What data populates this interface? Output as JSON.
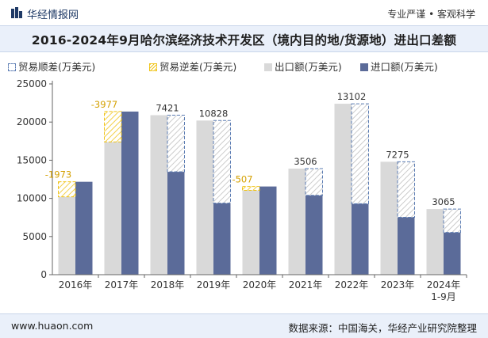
{
  "header": {
    "brand": "华经情报网",
    "tagline": "专业严谨 • 客观科学",
    "logo_icon": "bar-logo-icon"
  },
  "title": "2016-2024年9月哈尔滨经济技术开发区（境内目的地/货源地）进出口差额",
  "footer": {
    "url": "www.huaon.com",
    "source": "数据来源：中国海关，华经产业研究院整理"
  },
  "colors": {
    "export": "#d9d9d9",
    "import": "#5b6b99",
    "surplus_border": "#5b7cb3",
    "deficit": "#f0c419",
    "hatch": "#bfbfbf"
  },
  "chart_data": {
    "type": "bar",
    "categories": [
      "2016年",
      "2017年",
      "2018年",
      "2019年",
      "2020年",
      "2021年",
      "2022年",
      "2023年",
      "2024年\n1-9月"
    ],
    "series": [
      {
        "name": "出口额(万美元)",
        "values": [
          10200,
          17400,
          20900,
          20200,
          11050,
          13900,
          22400,
          14800,
          8600
        ]
      },
      {
        "name": "进口额(万美元)",
        "values": [
          12173,
          21377,
          13479,
          9372,
          11557,
          10394,
          9298,
          7525,
          5535
        ]
      }
    ],
    "balance": [
      -1973,
      -3977,
      7421,
      10828,
      -507,
      3506,
      13102,
      7275,
      3065
    ],
    "legend": [
      "贸易顺差(万美元)",
      "贸易逆差(万美元)",
      "出口额(万美元)",
      "进口额(万美元)"
    ],
    "legend_position": "top-left",
    "ylim": [
      0,
      25000
    ],
    "yticks": [
      0,
      5000,
      10000,
      15000,
      20000,
      25000
    ],
    "grid": false
  }
}
